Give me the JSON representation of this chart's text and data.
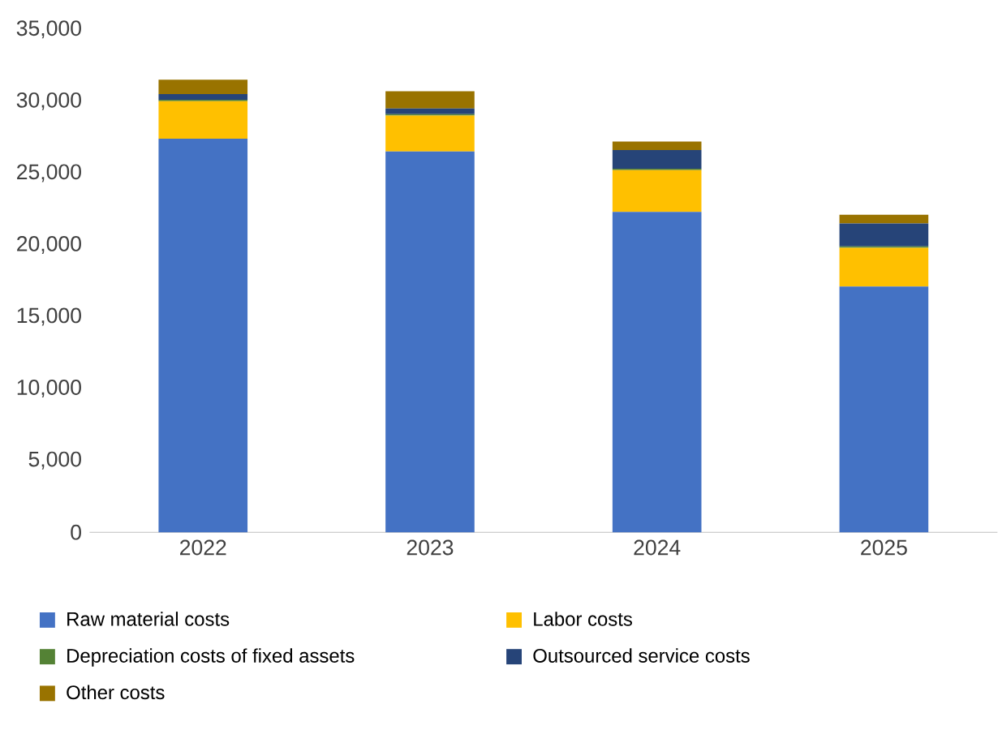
{
  "chart_data": {
    "type": "bar",
    "stacked": true,
    "categories": [
      "2022",
      "2023",
      "2024",
      "2025"
    ],
    "series": [
      {
        "name": "Raw material costs",
        "color": "#4472c4",
        "values": [
          27400,
          26500,
          22300,
          17100
        ]
      },
      {
        "name": "Labor costs",
        "color": "#ffc000",
        "values": [
          2600,
          2500,
          2900,
          2700
        ]
      },
      {
        "name": "Depreciation costs of fixed assets",
        "color": "#548235",
        "values": [
          100,
          100,
          100,
          100
        ]
      },
      {
        "name": "Outsourced service costs",
        "color": "#264478",
        "values": [
          400,
          400,
          1300,
          1600
        ]
      },
      {
        "name": "Other costs",
        "color": "#997300",
        "values": [
          1000,
          1200,
          600,
          600
        ]
      }
    ],
    "ylim": [
      0,
      35000
    ],
    "yticks": [
      0,
      {
        "value": 5000,
        "label": "5,000"
      },
      {
        "value": 10000,
        "label": "10,000"
      },
      {
        "value": 15000,
        "label": "15,000"
      },
      {
        "value": 20000,
        "label": "20,000"
      },
      {
        "value": 25000,
        "label": "25,000"
      },
      {
        "value": 30000,
        "label": "30,000"
      },
      {
        "value": 35000,
        "label": "35,000"
      }
    ],
    "legend": "bottom"
  }
}
